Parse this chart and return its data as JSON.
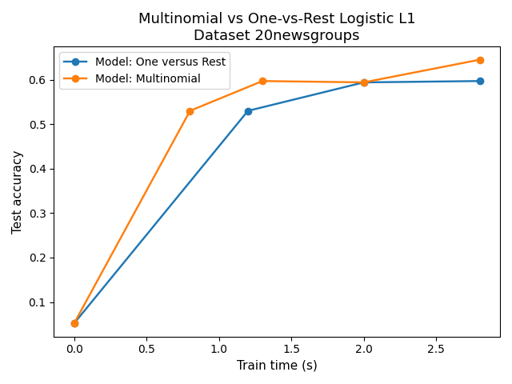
{
  "title": "Multinomial vs One-vs-Rest Logistic L1\nDataset 20newsgroups",
  "xlabel": "Train time (s)",
  "ylabel": "Test accuracy",
  "ovr": {
    "label": "Model: One versus Rest",
    "x": [
      0.0,
      1.2,
      2.0,
      2.8
    ],
    "y": [
      0.052,
      0.53,
      0.594,
      0.597
    ],
    "color": "#1f77b4",
    "marker": "o"
  },
  "multi": {
    "label": "Model: Multinomial",
    "x": [
      0.0,
      0.8,
      1.3,
      2.0,
      2.8
    ],
    "y": [
      0.052,
      0.53,
      0.597,
      0.594,
      0.645
    ],
    "color": "#ff7f0e",
    "marker": "o"
  },
  "yticks": [
    0.1,
    0.2,
    0.3,
    0.4,
    0.5,
    0.6
  ],
  "xticks": [
    0.0,
    0.5,
    1.0,
    1.5,
    2.0,
    2.5
  ],
  "linewidth": 1.75,
  "markersize": 6,
  "title_fontsize": 13,
  "label_fontsize": 11,
  "legend_fontsize": 10
}
